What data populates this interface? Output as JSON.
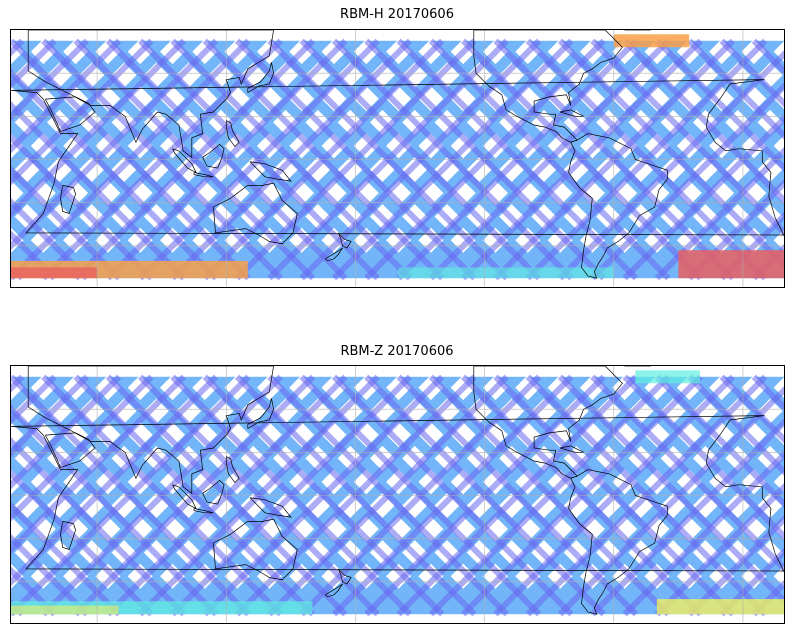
{
  "panels": [
    {
      "id": "top",
      "title": "RBM-H 20170606",
      "colors": {
        "dominant": "#6a68f0",
        "secondary": "#5aa8f8",
        "accent_cyan": "#5ef0e0",
        "accent_yellow": "#f0f060",
        "accent_orange": "#f8a048",
        "accent_red": "#e86060"
      }
    },
    {
      "id": "bottom",
      "title": "RBM-Z 20170606",
      "colors": {
        "dominant": "#6a68f0",
        "secondary": "#5aa8f8",
        "accent_cyan": "#5ef0e0",
        "accent_yellow": "#f0f060",
        "accent_orange": "#f8a048",
        "accent_red": "#e86060"
      }
    }
  ],
  "map": {
    "projection": "equirectangular",
    "lon_range": [
      20,
      380
    ],
    "lat_range": [
      -60,
      60
    ],
    "gridlines": true,
    "grid_lon_step": 60,
    "grid_lat_step": 20,
    "coastlines": true,
    "coastline_color": "#000000"
  }
}
